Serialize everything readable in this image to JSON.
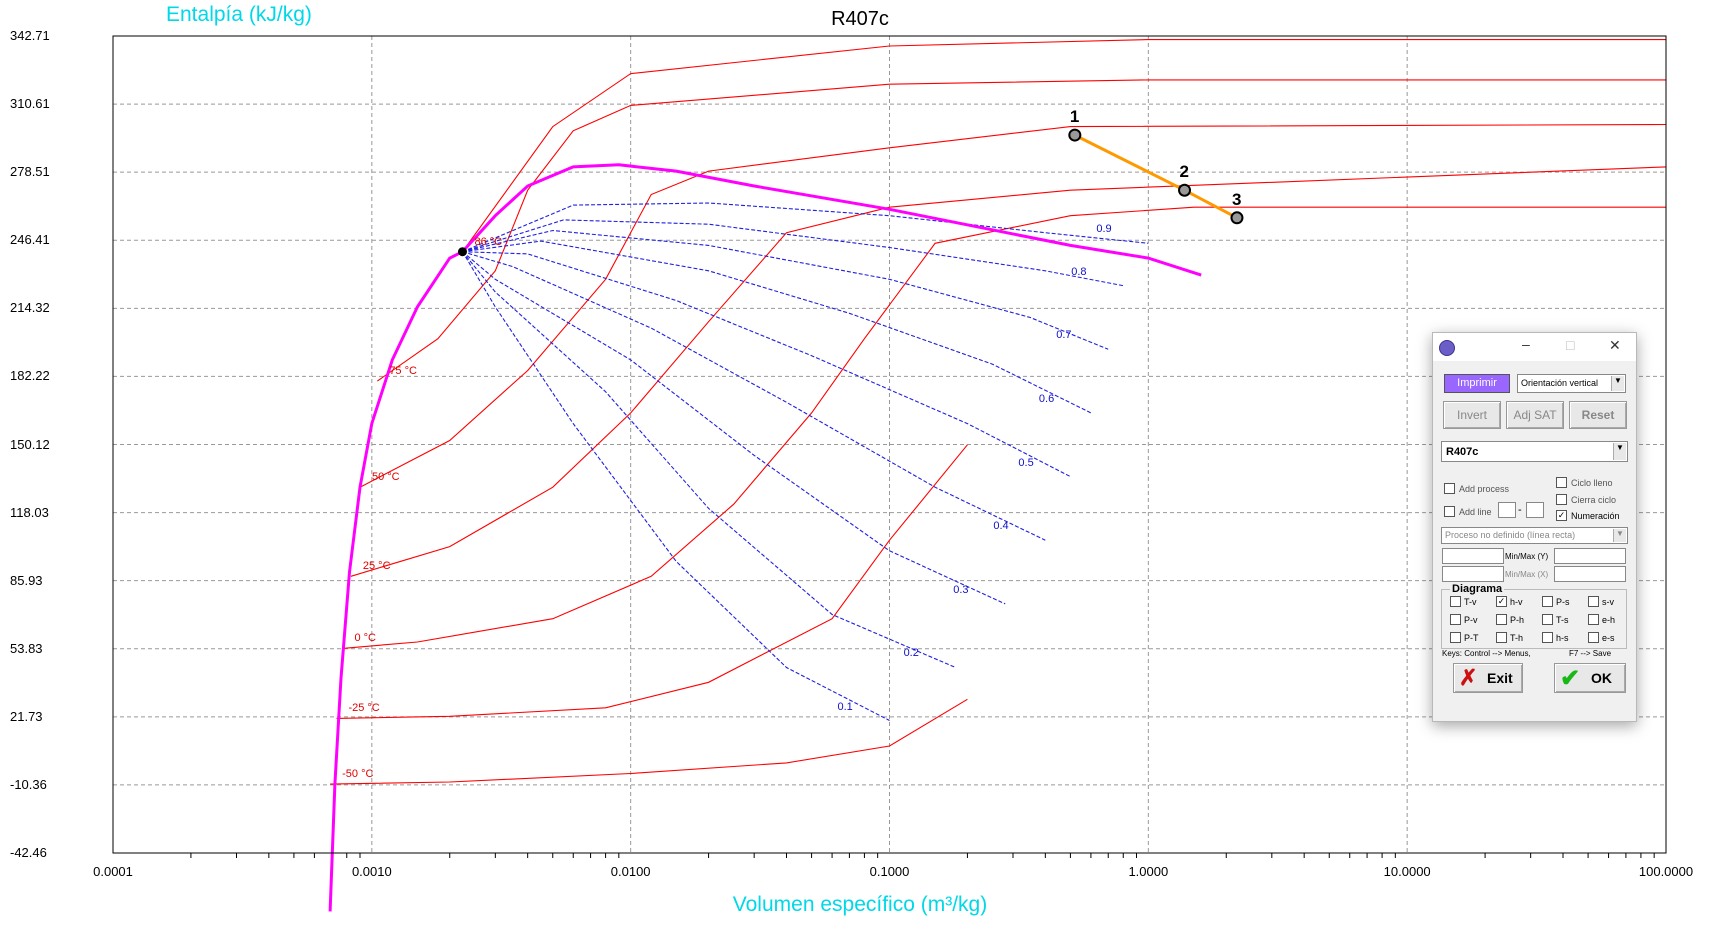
{
  "chart_data": {
    "type": "line",
    "title": "R407c",
    "xlabel": "Volumen específico (m³/kg)",
    "ylabel": "Entalpía (kJ/kg)",
    "x_scale": "log",
    "xlim": [
      0.0001,
      100
    ],
    "ylim": [
      -42.46,
      342.71
    ],
    "grid": true,
    "x_ticks": [
      "0.0001",
      "0.0010",
      "0.0100",
      "0.1000",
      "1.0000",
      "10.0000",
      "100.0000"
    ],
    "y_ticks": [
      "342.71",
      "310.61",
      "278.51",
      "246.41",
      "214.32",
      "182.22",
      "150.12",
      "118.03",
      "85.93",
      "53.83",
      "21.73",
      "-10.36",
      "-42.46"
    ],
    "critical_point": {
      "x": 0.00224,
      "y": 241,
      "label": "86 °C"
    },
    "saturation_curve": [
      [
        0.00069,
        -70
      ],
      [
        0.00072,
        -10
      ],
      [
        0.00076,
        40
      ],
      [
        0.00082,
        90
      ],
      [
        0.0009,
        130
      ],
      [
        0.001,
        160
      ],
      [
        0.0012,
        190
      ],
      [
        0.0015,
        215
      ],
      [
        0.002,
        238
      ],
      [
        0.00224,
        241
      ],
      [
        0.003,
        258
      ],
      [
        0.004,
        272
      ],
      [
        0.006,
        281
      ],
      [
        0.009,
        282
      ],
      [
        0.015,
        279
      ],
      [
        0.03,
        272
      ],
      [
        0.1,
        261
      ],
      [
        0.5,
        244
      ],
      [
        1.0,
        238
      ],
      [
        1.6,
        230
      ]
    ],
    "isotherms": [
      {
        "name": "-50 °C",
        "points": [
          [
            0.00069,
            -10
          ],
          [
            0.002,
            -9
          ],
          [
            0.01,
            -5
          ],
          [
            0.04,
            0
          ],
          [
            0.1,
            8
          ],
          [
            0.2,
            30
          ]
        ]
      },
      {
        "name": "-25 °C",
        "points": [
          [
            0.00073,
            21
          ],
          [
            0.002,
            22
          ],
          [
            0.008,
            26
          ],
          [
            0.02,
            38
          ],
          [
            0.06,
            68
          ],
          [
            0.1,
            105
          ],
          [
            0.2,
            150
          ]
        ]
      },
      {
        "name": "0 °C",
        "points": [
          [
            0.00077,
            54
          ],
          [
            0.0015,
            57
          ],
          [
            0.005,
            68
          ],
          [
            0.012,
            88
          ],
          [
            0.025,
            122
          ],
          [
            0.05,
            165
          ],
          [
            0.08,
            200
          ],
          [
            0.15,
            245
          ],
          [
            0.5,
            258
          ],
          [
            1.5,
            262
          ],
          [
            100,
            262
          ]
        ]
      },
      {
        "name": "25 °C",
        "points": [
          [
            0.00083,
            88
          ],
          [
            0.002,
            102
          ],
          [
            0.005,
            130
          ],
          [
            0.01,
            165
          ],
          [
            0.02,
            208
          ],
          [
            0.04,
            250
          ],
          [
            0.1,
            262
          ],
          [
            0.5,
            270
          ],
          [
            100,
            281
          ]
        ]
      },
      {
        "name": "50 °C",
        "points": [
          [
            0.0009,
            130
          ],
          [
            0.002,
            152
          ],
          [
            0.004,
            185
          ],
          [
            0.008,
            228
          ],
          [
            0.012,
            268
          ],
          [
            0.02,
            279
          ],
          [
            0.1,
            290
          ],
          [
            0.5,
            300
          ],
          [
            100,
            301
          ]
        ]
      },
      {
        "name": "75 °C",
        "points": [
          [
            0.00105,
            180
          ],
          [
            0.0018,
            200
          ],
          [
            0.003,
            232
          ],
          [
            0.004,
            270
          ],
          [
            0.006,
            298
          ],
          [
            0.01,
            310
          ],
          [
            0.1,
            320
          ],
          [
            1,
            322
          ],
          [
            100,
            322
          ]
        ]
      },
      {
        "name": "86 °C",
        "points": [
          [
            0.00224,
            241
          ],
          [
            0.005,
            300
          ],
          [
            0.01,
            325
          ],
          [
            0.1,
            338
          ],
          [
            1,
            341
          ],
          [
            100,
            341
          ]
        ]
      }
    ],
    "quality_lines": [
      {
        "name": "0.1",
        "points": [
          [
            0.00224,
            241
          ],
          [
            0.003,
            215
          ],
          [
            0.006,
            160
          ],
          [
            0.015,
            95
          ],
          [
            0.04,
            45
          ],
          [
            0.1,
            20
          ]
        ]
      },
      {
        "name": "0.2",
        "points": [
          [
            0.00224,
            241
          ],
          [
            0.003,
            222
          ],
          [
            0.008,
            175
          ],
          [
            0.02,
            120
          ],
          [
            0.06,
            70
          ],
          [
            0.18,
            45
          ]
        ]
      },
      {
        "name": "0.3",
        "points": [
          [
            0.00224,
            241
          ],
          [
            0.003,
            228
          ],
          [
            0.01,
            190
          ],
          [
            0.03,
            145
          ],
          [
            0.1,
            100
          ],
          [
            0.28,
            75
          ]
        ]
      },
      {
        "name": "0.4",
        "points": [
          [
            0.00224,
            241
          ],
          [
            0.0035,
            234
          ],
          [
            0.012,
            205
          ],
          [
            0.04,
            170
          ],
          [
            0.15,
            130
          ],
          [
            0.4,
            105
          ]
        ]
      },
      {
        "name": "0.5",
        "points": [
          [
            0.00224,
            241
          ],
          [
            0.004,
            240
          ],
          [
            0.015,
            218
          ],
          [
            0.05,
            192
          ],
          [
            0.2,
            160
          ],
          [
            0.5,
            135
          ]
        ]
      },
      {
        "name": "0.6",
        "points": [
          [
            0.00224,
            241
          ],
          [
            0.0045,
            246
          ],
          [
            0.02,
            232
          ],
          [
            0.07,
            212
          ],
          [
            0.25,
            188
          ],
          [
            0.6,
            165
          ]
        ]
      },
      {
        "name": "0.7",
        "points": [
          [
            0.00224,
            241
          ],
          [
            0.005,
            251
          ],
          [
            0.02,
            244
          ],
          [
            0.1,
            228
          ],
          [
            0.35,
            210
          ],
          [
            0.7,
            195
          ]
        ]
      },
      {
        "name": "0.8",
        "points": [
          [
            0.00224,
            241
          ],
          [
            0.0055,
            256
          ],
          [
            0.02,
            254
          ],
          [
            0.1,
            243
          ],
          [
            0.4,
            232
          ],
          [
            0.8,
            225
          ]
        ]
      },
      {
        "name": "0.9",
        "points": [
          [
            0.00224,
            241
          ],
          [
            0.006,
            263
          ],
          [
            0.02,
            264
          ],
          [
            0.1,
            258
          ],
          [
            0.4,
            250
          ],
          [
            1.0,
            245
          ]
        ]
      }
    ],
    "process": {
      "points": [
        {
          "label": "1",
          "x": 0.52,
          "y": 296
        },
        {
          "label": "2",
          "x": 1.38,
          "y": 270
        },
        {
          "label": "3",
          "x": 2.2,
          "y": 257
        }
      ]
    },
    "colors": {
      "isotherm": "#ff0000",
      "quality": "#2020e0",
      "saturation": "#ff00ff",
      "process": "#ff9900",
      "axis_title": "#00d8e8"
    }
  },
  "dialog": {
    "print_button": "Imprimir",
    "orientation": "Orientación vertical",
    "invert_button": "Invert",
    "adjsat_button": "Adj SAT",
    "reset_button": "Reset",
    "fluid": "R407c",
    "add_process": "Add process",
    "add_line": "Add line",
    "ciclo_lleno": "Ciclo lleno",
    "cierra_ciclo": "Cierra ciclo",
    "numeracion": "Numeración",
    "process_type": "Proceso no definido (línea recta)",
    "minmax_y": "Min/Max (Y)",
    "minmax_x": "Min/Max (X)",
    "diagram_group": "Diagrama",
    "diagram_options": [
      {
        "label": "T-v",
        "checked": false
      },
      {
        "label": "h-v",
        "checked": true
      },
      {
        "label": "P-s",
        "checked": false
      },
      {
        "label": "s-v",
        "checked": false
      },
      {
        "label": "P-v",
        "checked": false
      },
      {
        "label": "P-h",
        "checked": false
      },
      {
        "label": "T-s",
        "checked": false
      },
      {
        "label": "e-h",
        "checked": false
      },
      {
        "label": "P-T",
        "checked": false
      },
      {
        "label": "T-h",
        "checked": false
      },
      {
        "label": "h-s",
        "checked": false
      },
      {
        "label": "e-s",
        "checked": false
      }
    ],
    "keys_hint": "Keys: Control --> Menus,",
    "save_hint": "F7 --> Save",
    "exit_button": "Exit",
    "ok_button": "OK",
    "dash": "-"
  }
}
